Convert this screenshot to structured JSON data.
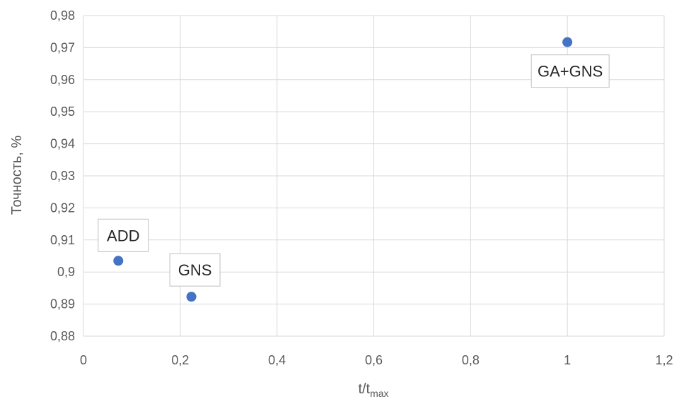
{
  "chart_data": {
    "type": "scatter",
    "title": "",
    "xlabel": "t/t",
    "xlabel_sub": "max",
    "ylabel": "Точность, %",
    "xlim": [
      0,
      1.2
    ],
    "ylim": [
      0.88,
      0.98
    ],
    "x_ticks": [
      "0",
      "0,2",
      "0,4",
      "0,6",
      "0,8",
      "1",
      "1,2"
    ],
    "y_ticks": [
      "0,88",
      "0,89",
      "0,9",
      "0,91",
      "0,92",
      "0,93",
      "0,94",
      "0,95",
      "0,96",
      "0,97",
      "0,98"
    ],
    "grid": true,
    "legend": "none",
    "point_color": "#4472C4",
    "series": [
      {
        "points": [
          {
            "x": 0.072,
            "y": 0.9035,
            "label": "ADD"
          },
          {
            "x": 0.223,
            "y": 0.8923,
            "label": "GNS"
          },
          {
            "x": 1.0,
            "y": 0.9717,
            "label": "GA+GNS"
          }
        ]
      }
    ]
  }
}
